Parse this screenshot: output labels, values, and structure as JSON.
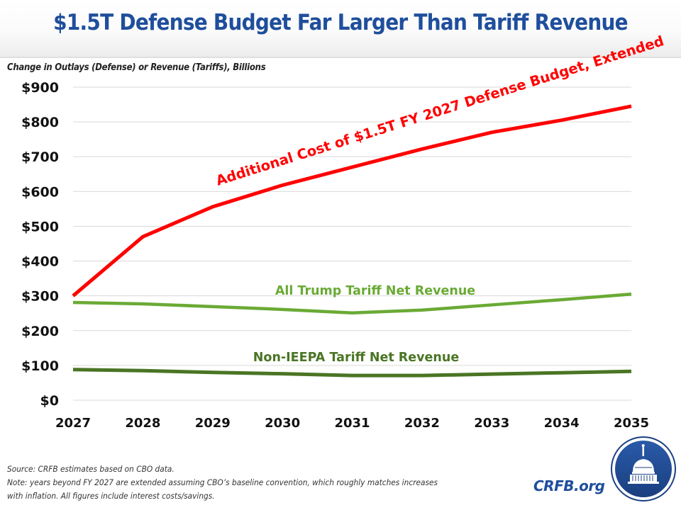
{
  "header": {
    "title": "$1.5T Defense Budget Far Larger Than Tariff Revenue",
    "subtitle": "Change in Outlays (Defense) or Revenue (Tariffs), Billions"
  },
  "footer": {
    "source": "Source: CRFB estimates based on CBO data.",
    "note_line1": "Note: years beyond FY 2027 are extended assuming CBO’s baseline convention, which roughly matches increases",
    "note_line2": "with inflation. All figures include interest costs/savings.",
    "brand": "CRFB.org",
    "logo_icon": "capitol-dome-icon"
  },
  "colors": {
    "title": "#1f4e9c",
    "defense": "#ff0000",
    "all_tariff": "#6aaa35",
    "non_ieepa": "#4a7524",
    "grid": "#d9d9d9"
  },
  "chart_data": {
    "type": "line",
    "title": "$1.5T Defense Budget Far Larger Than Tariff Revenue",
    "ylabel": "Change in Outlays (Defense) or Revenue (Tariffs), Billions",
    "xlabel": "",
    "x": [
      "2027",
      "2028",
      "2029",
      "2030",
      "2031",
      "2032",
      "2033",
      "2034",
      "2035"
    ],
    "ylim": [
      0,
      900
    ],
    "yticks": [
      0,
      100,
      200,
      300,
      400,
      500,
      600,
      700,
      800,
      900
    ],
    "ytick_labels": [
      "$0",
      "$100",
      "$200",
      "$300",
      "$400",
      "$500",
      "$600",
      "$700",
      "$800",
      "$900"
    ],
    "grid": true,
    "legend": "none (inline labels)",
    "series": [
      {
        "name": "Additional Cost of $1.5T FY 2027 Defense Budget, Extended",
        "color": "#ff0000",
        "values": [
          300,
          470,
          556,
          618,
          670,
          722,
          770,
          805,
          845
        ]
      },
      {
        "name": "All Trump Tariff Net Revenue",
        "color": "#6aaa35",
        "values": [
          281,
          277,
          269,
          261,
          251,
          259,
          274,
          289,
          305
        ]
      },
      {
        "name": "Non-IEEPA Tariff Net Revenue",
        "color": "#4a7524",
        "values": [
          88,
          85,
          80,
          76,
          71,
          71,
          75,
          79,
          83
        ]
      }
    ]
  }
}
